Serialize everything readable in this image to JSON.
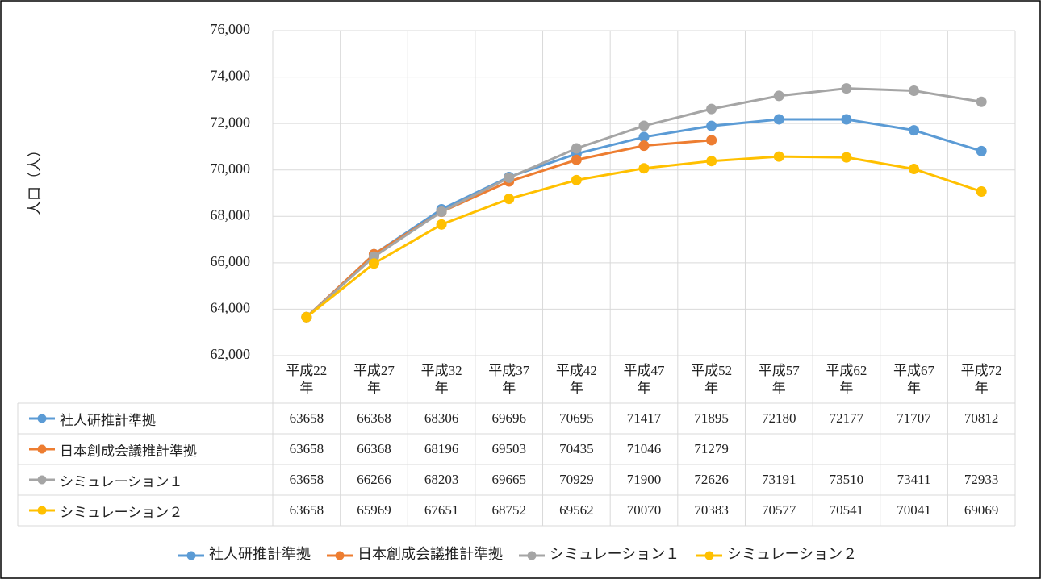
{
  "chart_data": {
    "type": "line",
    "y_label": "人口（人）",
    "categories": [
      "平成22年",
      "平成27年",
      "平成32年",
      "平成37年",
      "平成42年",
      "平成47年",
      "平成52年",
      "平成57年",
      "平成62年",
      "平成67年",
      "平成72年"
    ],
    "series": [
      {
        "name": "社人研推計準拠",
        "color": "#5b9bd5",
        "values": [
          63658,
          66368,
          68306,
          69696,
          70695,
          71417,
          71895,
          72180,
          72177,
          71707,
          70812
        ]
      },
      {
        "name": "日本創成会議推計準拠",
        "color": "#ed7d31",
        "values": [
          63658,
          66368,
          68196,
          69503,
          70435,
          71046,
          71279,
          null,
          null,
          null,
          null
        ]
      },
      {
        "name": "シミュレーション１",
        "color": "#a5a5a5",
        "values": [
          63658,
          66266,
          68203,
          69665,
          70929,
          71900,
          72626,
          73191,
          73510,
          73411,
          72933
        ]
      },
      {
        "name": "シミュレーション２",
        "color": "#ffc000",
        "values": [
          63658,
          65969,
          67651,
          68752,
          69562,
          70070,
          70383,
          70577,
          70541,
          70041,
          69069
        ]
      }
    ],
    "ylim": [
      62000,
      76000
    ],
    "yticks": [
      {
        "value": 62000,
        "label": "62,000"
      },
      {
        "value": 64000,
        "label": "64,000"
      },
      {
        "value": 66000,
        "label": "66,000"
      },
      {
        "value": 68000,
        "label": "68,000"
      },
      {
        "value": 70000,
        "label": "70,000"
      },
      {
        "value": 72000,
        "label": "72,000"
      },
      {
        "value": 74000,
        "label": "74,000"
      },
      {
        "value": 76000,
        "label": "76,000"
      }
    ],
    "grid": true
  }
}
